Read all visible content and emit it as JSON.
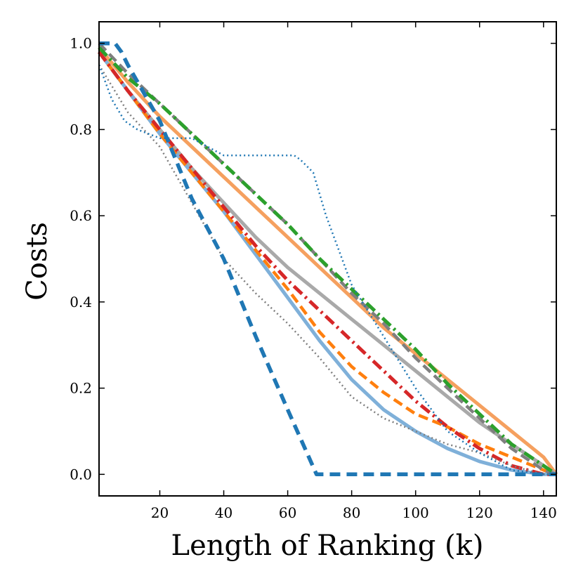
{
  "chart_data": {
    "type": "line",
    "title": "",
    "xlabel": "Length of Ranking (k)",
    "ylabel": "Costs",
    "xlim": [
      1,
      144
    ],
    "ylim": [
      -0.05,
      1.05
    ],
    "xticks": [
      20,
      40,
      60,
      80,
      100,
      120,
      140
    ],
    "yticks": [
      0.0,
      0.2,
      0.4,
      0.6,
      0.8,
      1.0
    ],
    "xtick_labels": [
      "20",
      "40",
      "60",
      "80",
      "100",
      "120",
      "140"
    ],
    "ytick_labels": [
      "0.0",
      "0.2",
      "0.4",
      "0.6",
      "0.8",
      "1.0"
    ],
    "grid": false,
    "legend": "none",
    "series": [
      {
        "color": "#f5a05f",
        "style": "solid-thick",
        "x": [
          1,
          10,
          20,
          30,
          40,
          50,
          60,
          70,
          80,
          90,
          100,
          110,
          120,
          130,
          140,
          144
        ],
        "y": [
          0.99,
          0.91,
          0.83,
          0.76,
          0.69,
          0.62,
          0.55,
          0.48,
          0.41,
          0.34,
          0.28,
          0.22,
          0.16,
          0.1,
          0.04,
          0.0
        ]
      },
      {
        "color": "#a9a9a9",
        "style": "solid-thick",
        "x": [
          1,
          10,
          20,
          30,
          40,
          50,
          60,
          70,
          80,
          90,
          100,
          110,
          120,
          130,
          140,
          144
        ],
        "y": [
          0.98,
          0.89,
          0.8,
          0.71,
          0.63,
          0.55,
          0.48,
          0.42,
          0.36,
          0.3,
          0.24,
          0.18,
          0.12,
          0.07,
          0.02,
          0.0
        ]
      },
      {
        "color": "#7fb0d9",
        "style": "solid-thick",
        "x": [
          1,
          10,
          20,
          30,
          40,
          50,
          60,
          70,
          80,
          90,
          100,
          110,
          120,
          130,
          140,
          144
        ],
        "y": [
          0.98,
          0.89,
          0.79,
          0.7,
          0.61,
          0.51,
          0.41,
          0.31,
          0.22,
          0.15,
          0.1,
          0.06,
          0.03,
          0.01,
          0.0,
          0.0
        ]
      },
      {
        "color": "#ff7f0e",
        "style": "dashed-thick",
        "x": [
          1,
          10,
          20,
          30,
          40,
          50,
          60,
          70,
          80,
          90,
          100,
          110,
          120,
          130,
          140,
          144
        ],
        "y": [
          0.98,
          0.89,
          0.79,
          0.7,
          0.61,
          0.52,
          0.43,
          0.33,
          0.25,
          0.19,
          0.14,
          0.11,
          0.07,
          0.04,
          0.01,
          0.0
        ]
      },
      {
        "color": "#d62728",
        "style": "dashdot-thick",
        "x": [
          1,
          10,
          20,
          30,
          40,
          50,
          60,
          70,
          80,
          90,
          100,
          110,
          120,
          130,
          140,
          144
        ],
        "y": [
          0.98,
          0.89,
          0.8,
          0.71,
          0.62,
          0.53,
          0.45,
          0.38,
          0.31,
          0.24,
          0.17,
          0.11,
          0.06,
          0.02,
          0.0,
          0.0
        ]
      },
      {
        "color": "#7f7f7f",
        "style": "dotted",
        "x": [
          1,
          10,
          20,
          30,
          40,
          50,
          60,
          70,
          80,
          90,
          100,
          110,
          120,
          130,
          140,
          144
        ],
        "y": [
          0.95,
          0.84,
          0.76,
          0.63,
          0.5,
          0.42,
          0.35,
          0.27,
          0.18,
          0.13,
          0.1,
          0.07,
          0.05,
          0.02,
          0.0,
          0.0
        ]
      },
      {
        "color": "#7f7f7f",
        "style": "dashed-thick",
        "x": [
          1,
          10,
          20,
          30,
          40,
          50,
          60,
          70,
          80,
          90,
          100,
          110,
          120,
          130,
          140,
          144
        ],
        "y": [
          1.0,
          0.93,
          0.86,
          0.79,
          0.72,
          0.65,
          0.58,
          0.5,
          0.42,
          0.35,
          0.27,
          0.2,
          0.13,
          0.06,
          0.01,
          0.0
        ]
      },
      {
        "color": "#2ca02c",
        "style": "dashdot-thick",
        "x": [
          1,
          10,
          20,
          30,
          40,
          50,
          60,
          70,
          80,
          90,
          100,
          110,
          120,
          130,
          140,
          144
        ],
        "y": [
          0.99,
          0.92,
          0.86,
          0.79,
          0.72,
          0.65,
          0.58,
          0.5,
          0.43,
          0.36,
          0.29,
          0.21,
          0.14,
          0.07,
          0.02,
          0.0
        ]
      },
      {
        "color": "#1f77b4",
        "style": "dotted",
        "x": [
          1,
          5,
          9,
          13,
          20,
          30,
          40,
          50,
          62,
          64,
          68,
          72,
          80,
          90,
          100,
          110,
          120,
          130,
          140,
          144
        ],
        "y": [
          0.95,
          0.87,
          0.82,
          0.8,
          0.78,
          0.78,
          0.74,
          0.74,
          0.74,
          0.73,
          0.7,
          0.6,
          0.44,
          0.32,
          0.2,
          0.1,
          0.05,
          0.01,
          0.0,
          0.0
        ]
      },
      {
        "color": "#1f77b4",
        "style": "dashed-heavy",
        "x": [
          1,
          6,
          8,
          10,
          20,
          30,
          40,
          50,
          60,
          69,
          80,
          100,
          120,
          144
        ],
        "y": [
          1.0,
          1.0,
          0.98,
          0.95,
          0.82,
          0.64,
          0.5,
          0.32,
          0.15,
          0.0,
          0.0,
          0.0,
          0.0,
          0.0
        ]
      }
    ]
  }
}
